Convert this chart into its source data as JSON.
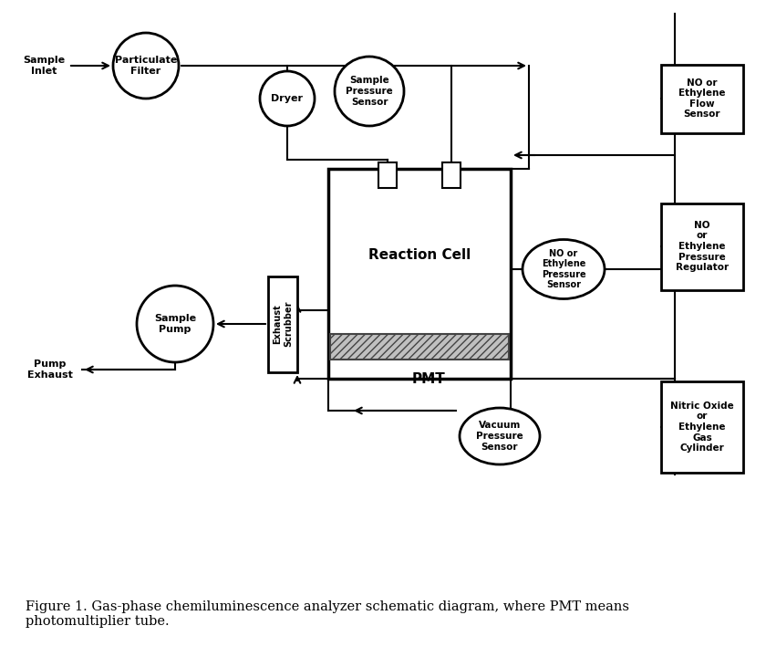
{
  "bg_color": "#ffffff",
  "figure_caption": "Figure 1. Gas-phase chemiluminescence analyzer schematic diagram, where PMT means\nphotomultiplier tube.",
  "caption_fontsize": 10.5,
  "diagram": {
    "sample_inlet_label": "Sample\nInlet",
    "particulate_filter_label": "Particulate\nFilter",
    "dryer_label": "Dryer",
    "sample_pressure_sensor_label": "Sample\nPressure\nSensor",
    "reaction_cell_label": "Reaction Cell",
    "pmt_label": "PMT",
    "exhaust_scrubber_label": "Exhaust\nScrubber",
    "sample_pump_label": "Sample\nPump",
    "pump_exhaust_label": "Pump\nExhaust",
    "vacuum_pressure_sensor_label": "Vacuum\nPressure\nSensor",
    "no_ethylene_pressure_sensor_label": "NO or\nEthylene\nPressure\nSensor",
    "no_ethylene_flow_sensor_label": "NO or\nEthylene\nFlow\nSensor",
    "no_ethylene_pressure_regulator_label": "NO\nor\nEthylene\nPressure\nRegulator",
    "nitric_oxide_cylinder_label": "Nitric Oxide\nor\nEthylene\nGas\nCylinder"
  }
}
